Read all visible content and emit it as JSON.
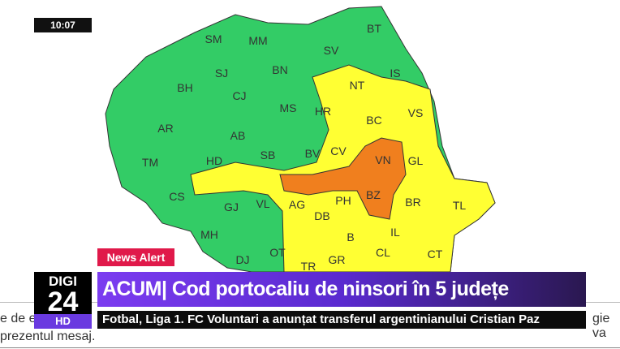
{
  "clock": "10:07",
  "map": {
    "colors": {
      "green": "#33cc66",
      "yellow": "#ffff33",
      "orange": "#f07f1e"
    },
    "counties": [
      "SM",
      "MM",
      "BT",
      "SV",
      "BN",
      "SJ",
      "IS",
      "NT",
      "BH",
      "CJ",
      "MS",
      "HR",
      "VS",
      "BC",
      "AR",
      "AB",
      "CV",
      "SB",
      "BV",
      "VN",
      "GL",
      "TM",
      "HD",
      "CS",
      "GJ",
      "VL",
      "AG",
      "PH",
      "BZ",
      "BR",
      "TL",
      "DB",
      "MH",
      "IL",
      "B",
      "DJ",
      "OT",
      "CL",
      "GR",
      "CT",
      "TR"
    ]
  },
  "news_alert": "News Alert",
  "headline": "ACUM| Cod portocaliu de ninsori în 5 județe",
  "logo": {
    "top": "DIGI",
    "number": "24",
    "badge": "HD"
  },
  "ticker": "Fotbal, Liga 1. FC Voluntari a anunțat transferul argentinianului Cristian Paz",
  "background_text": {
    "left": "e de e",
    "right": "gie va",
    "line2": "prezentul mesaj."
  }
}
